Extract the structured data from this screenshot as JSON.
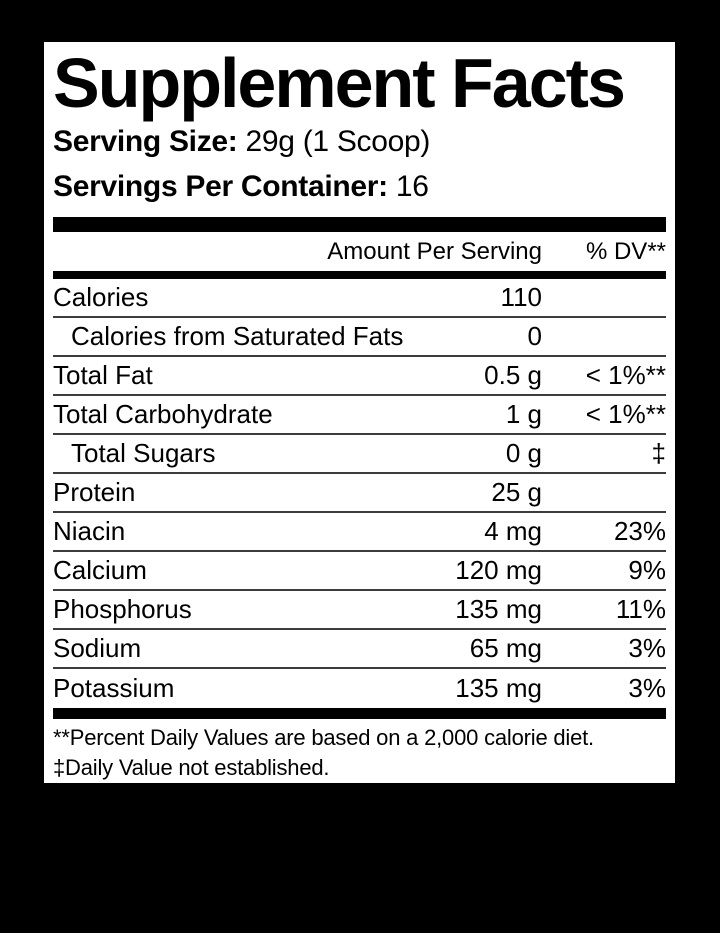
{
  "label": {
    "title": "Supplement Facts",
    "serving_size_label": "Serving Size:",
    "serving_size_value": " 29g (1 Scoop)",
    "servings_label": "Servings Per Container:",
    "servings_value": " 16",
    "header": {
      "amount": "Amount Per Serving",
      "dv": "% DV**"
    },
    "rows": [
      {
        "name": "Calories",
        "amount": "110",
        "dv": "",
        "indent": false
      },
      {
        "name": "Calories from Saturated Fats",
        "amount": "0",
        "dv": "",
        "indent": true
      },
      {
        "name": "Total Fat",
        "amount": "0.5 g",
        "dv": "< 1%**",
        "indent": false
      },
      {
        "name": "Total Carbohydrate",
        "amount": "1 g",
        "dv": "< 1%**",
        "indent": false
      },
      {
        "name": "Total Sugars",
        "amount": "0 g",
        "dv": "‡",
        "indent": true
      },
      {
        "name": "Protein",
        "amount": "25 g",
        "dv": "",
        "indent": false
      },
      {
        "name": "Niacin",
        "amount": "4 mg",
        "dv": "23%",
        "indent": false
      },
      {
        "name": "Calcium",
        "amount": "120 mg",
        "dv": "9%",
        "indent": false
      },
      {
        "name": "Phosphorus",
        "amount": "135 mg",
        "dv": "11%",
        "indent": false
      },
      {
        "name": "Sodium",
        "amount": "65 mg",
        "dv": "3%",
        "indent": false
      },
      {
        "name": "Potassium",
        "amount": "135 mg",
        "dv": "3%",
        "indent": false
      }
    ],
    "footnotes": [
      "**Percent Daily Values are based on a 2,000 calorie diet.",
      "‡Daily Value not established."
    ],
    "colors": {
      "background": "#000000",
      "panel": "#ffffff",
      "text": "#000000",
      "separator": "#3c3c3c"
    }
  }
}
